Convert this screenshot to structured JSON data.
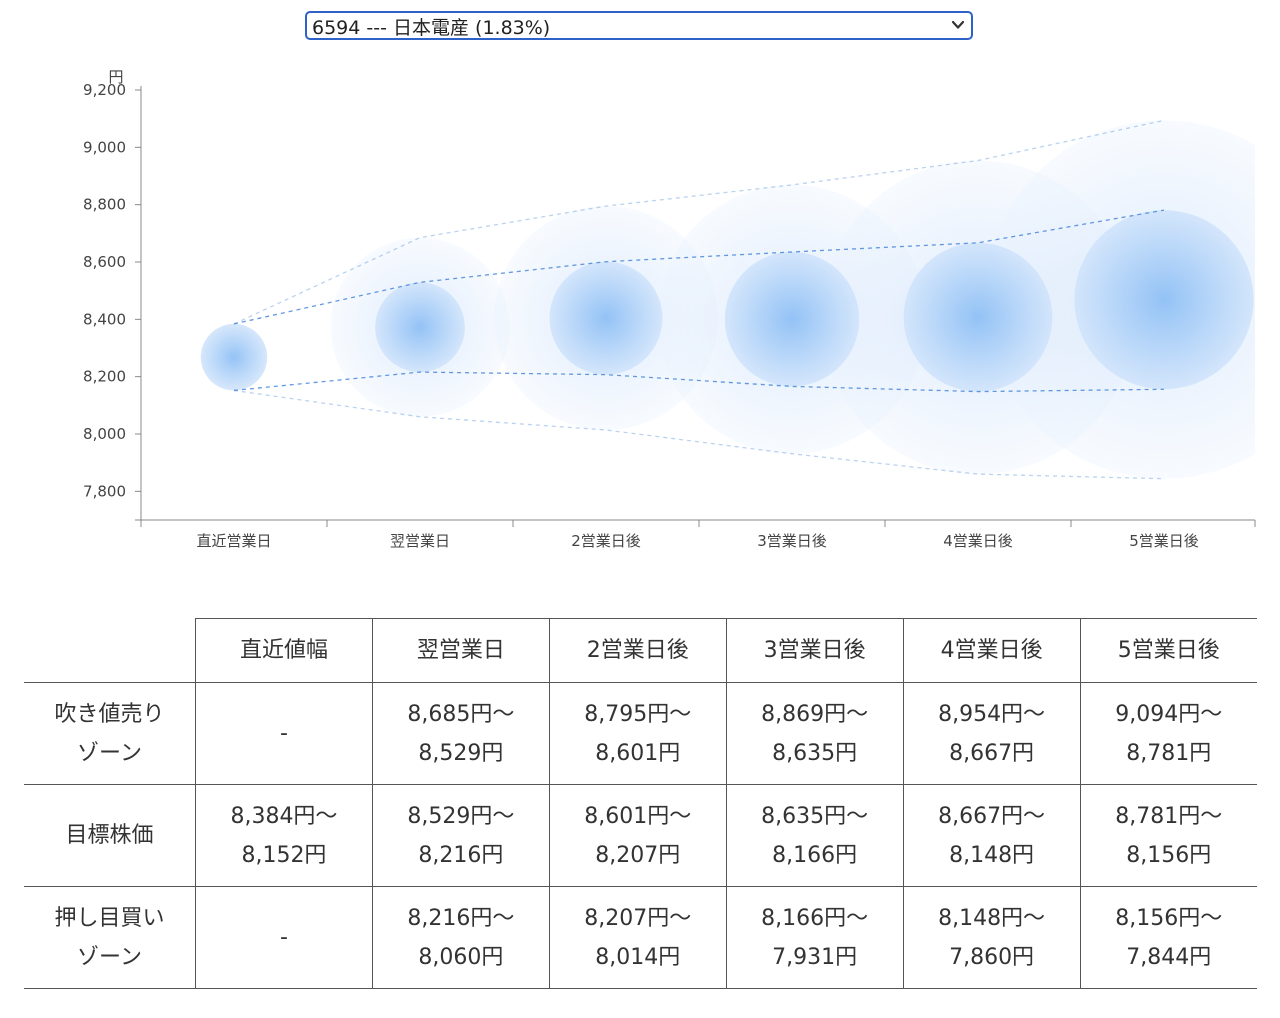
{
  "selector": {
    "selected_label": "6594 --- 日本電産 (1.83%)"
  },
  "chart_data": {
    "type": "bubble-range",
    "ylabel": "円",
    "ylim": [
      7700,
      9200
    ],
    "yticks": [
      7800,
      8000,
      8200,
      8400,
      8600,
      8800,
      9000,
      9200
    ],
    "ytick_labels": [
      "7,800",
      "8,000",
      "8,200",
      "8,400",
      "8,600",
      "8,800",
      "9,000",
      "9,200"
    ],
    "categories": [
      "直近営業日",
      "翌営業日",
      "2営業日後",
      "3営業日後",
      "4営業日後",
      "5営業日後"
    ],
    "target_high": [
      8384,
      8529,
      8601,
      8635,
      8667,
      8781
    ],
    "target_low": [
      8152,
      8216,
      8207,
      8166,
      8148,
      8156
    ],
    "sell_high": [
      8384,
      8685,
      8795,
      8869,
      8954,
      9094
    ],
    "buy_low": [
      8152,
      8060,
      8014,
      7931,
      7860,
      7844
    ],
    "colors": {
      "bubble": "#5a9be8",
      "line": "#3d7fd8"
    }
  },
  "table": {
    "headers": [
      "",
      "直近値幅",
      "翌営業日",
      "2営業日後",
      "3営業日後",
      "4営業日後",
      "5営業日後"
    ],
    "rows": [
      {
        "label": [
          "吹き値売り",
          "ゾーン"
        ],
        "cells": [
          [
            "-"
          ],
          [
            "8,685円〜",
            "8,529円"
          ],
          [
            "8,795円〜",
            "8,601円"
          ],
          [
            "8,869円〜",
            "8,635円"
          ],
          [
            "8,954円〜",
            "8,667円"
          ],
          [
            "9,094円〜",
            "8,781円"
          ]
        ]
      },
      {
        "label": [
          "目標株価"
        ],
        "cells": [
          [
            "8,384円〜",
            "8,152円"
          ],
          [
            "8,529円〜",
            "8,216円"
          ],
          [
            "8,601円〜",
            "8,207円"
          ],
          [
            "8,635円〜",
            "8,166円"
          ],
          [
            "8,667円〜",
            "8,148円"
          ],
          [
            "8,781円〜",
            "8,156円"
          ]
        ]
      },
      {
        "label": [
          "押し目買い",
          "ゾーン"
        ],
        "cells": [
          [
            "-"
          ],
          [
            "8,216円〜",
            "8,060円"
          ],
          [
            "8,207円〜",
            "8,014円"
          ],
          [
            "8,166円〜",
            "7,931円"
          ],
          [
            "8,148円〜",
            "7,860円"
          ],
          [
            "8,156円〜",
            "7,844円"
          ]
        ]
      }
    ]
  }
}
